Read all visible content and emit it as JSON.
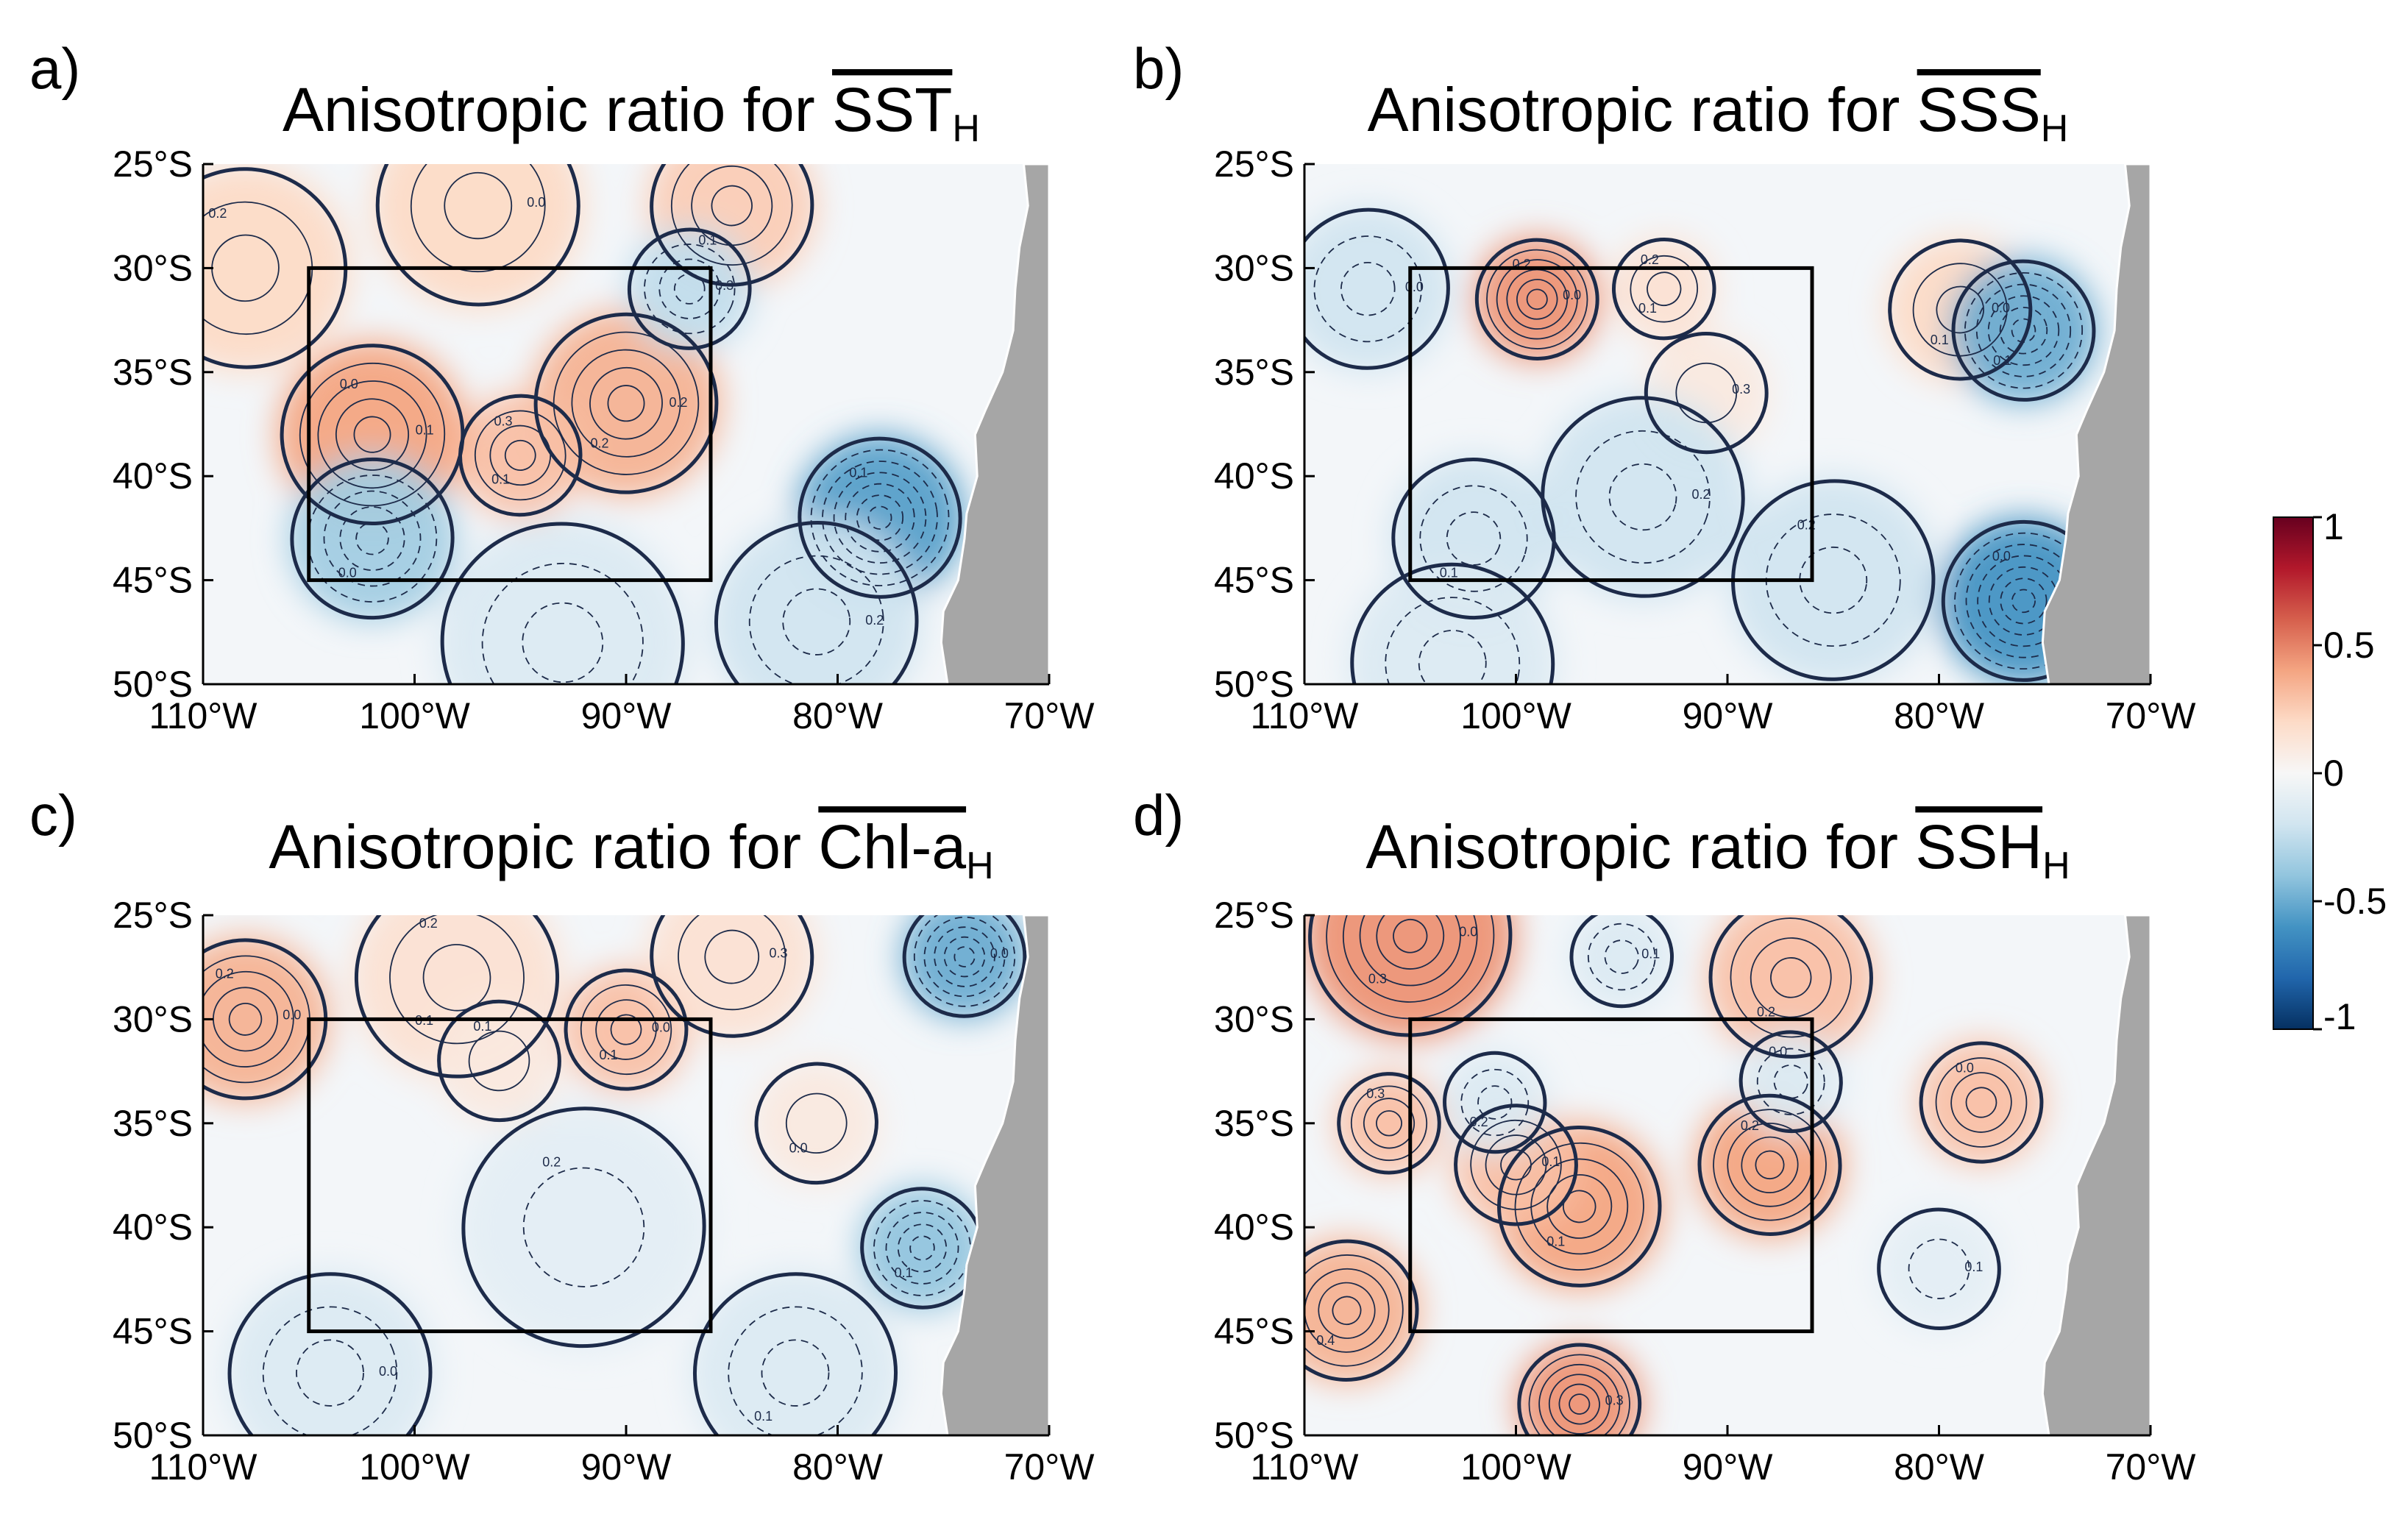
{
  "figure": {
    "colorbar": {
      "ticks": [
        {
          "value": 1,
          "label": "1"
        },
        {
          "value": 0.5,
          "label": "0.5"
        },
        {
          "value": 0,
          "label": "0"
        },
        {
          "value": -0.5,
          "label": "-0.5"
        },
        {
          "value": -1,
          "label": "-1"
        }
      ],
      "range": [
        -1,
        1
      ],
      "colormap": [
        "#053061",
        "#2166ac",
        "#4393c3",
        "#92c5de",
        "#d1e5f0",
        "#f7f7f7",
        "#fddbc7",
        "#f4a582",
        "#d6604d",
        "#b2182b",
        "#67001f"
      ]
    }
  },
  "colors": {
    "land": "#a6a6a6",
    "contour": "#1d2b4a",
    "box": "#000000",
    "pos_soft": "#f4c0a8",
    "pos_mid": "#ec9b7d",
    "pos_strong": "#dc6e56",
    "neg_soft": "#d3e6f2",
    "neg_mid": "#9fc9e2",
    "neg_strong": "#3f8dc4"
  },
  "chart_data": [
    {
      "type": "heatmap",
      "panel": "a)",
      "title": "Anisotropic ratio for SST",
      "title_main": "Anisotropic ratio for ",
      "title_var": "SST",
      "title_sub": "H",
      "xlim": [
        -110,
        -70
      ],
      "ylim": [
        -50,
        -25
      ],
      "x_ticks": [
        {
          "value": -110,
          "label": "110°W"
        },
        {
          "value": -100,
          "label": "100°W"
        },
        {
          "value": -90,
          "label": "90°W"
        },
        {
          "value": -80,
          "label": "80°W"
        },
        {
          "value": -70,
          "label": "70°W"
        }
      ],
      "y_ticks": [
        {
          "value": -25,
          "label": "25°S"
        },
        {
          "value": -30,
          "label": "30°S"
        },
        {
          "value": -35,
          "label": "35°S"
        },
        {
          "value": -40,
          "label": "40°S"
        },
        {
          "value": -45,
          "label": "45°S"
        },
        {
          "value": -50,
          "label": "50°S"
        }
      ],
      "box": {
        "lon": [
          -105,
          -86
        ],
        "lat": [
          -45,
          -30
        ]
      },
      "features": [
        {
          "lon": -102,
          "lat": -38,
          "value": 0.4,
          "r": 4.5
        },
        {
          "lon": -90,
          "lat": -36.5,
          "value": 0.35,
          "r": 4.5
        },
        {
          "lon": -95,
          "lat": -39,
          "value": 0.3,
          "r": 3
        },
        {
          "lon": -97,
          "lat": -27,
          "value": 0.2,
          "r": 5
        },
        {
          "lon": -85,
          "lat": -27,
          "value": 0.25,
          "r": 4
        },
        {
          "lon": -108,
          "lat": -30,
          "value": 0.2,
          "r": 5
        },
        {
          "lon": -87,
          "lat": -31,
          "value": -0.25,
          "r": 3
        },
        {
          "lon": -102,
          "lat": -43,
          "value": -0.35,
          "r": 4
        },
        {
          "lon": -78,
          "lat": -42,
          "value": -0.55,
          "r": 4
        },
        {
          "lon": -81,
          "lat": -47,
          "value": -0.2,
          "r": 5
        },
        {
          "lon": -93,
          "lat": -48,
          "value": -0.15,
          "r": 6
        }
      ],
      "contour_labels": [
        "0.1",
        "0.2",
        "0.3",
        "0.0",
        "0.1",
        "0.2",
        "0.3",
        "0.0",
        "0.1",
        "0.2",
        "0.1",
        "0.0",
        "0.2",
        "0.1"
      ]
    },
    {
      "type": "heatmap",
      "panel": "b)",
      "title": "Anisotropic ratio for SSS",
      "title_main": "Anisotropic ratio for ",
      "title_var": "SSS",
      "title_sub": "H",
      "xlim": [
        -110,
        -70
      ],
      "ylim": [
        -50,
        -25
      ],
      "x_ticks": [
        {
          "value": -110,
          "label": "110°W"
        },
        {
          "value": -100,
          "label": "100°W"
        },
        {
          "value": -90,
          "label": "90°W"
        },
        {
          "value": -80,
          "label": "80°W"
        },
        {
          "value": -70,
          "label": "70°W"
        }
      ],
      "y_ticks": [
        {
          "value": -25,
          "label": "25°S"
        },
        {
          "value": -30,
          "label": "30°S"
        },
        {
          "value": -35,
          "label": "35°S"
        },
        {
          "value": -40,
          "label": "40°S"
        },
        {
          "value": -45,
          "label": "45°S"
        },
        {
          "value": -50,
          "label": "50°S"
        }
      ],
      "box": {
        "lon": [
          -105,
          -86
        ],
        "lat": [
          -45,
          -30
        ]
      },
      "features": [
        {
          "lon": -99,
          "lat": -31.5,
          "value": 0.45,
          "r": 3
        },
        {
          "lon": -79,
          "lat": -32,
          "value": 0.2,
          "r": 3.5
        },
        {
          "lon": -93,
          "lat": -31,
          "value": 0.15,
          "r": 2.5
        },
        {
          "lon": -91,
          "lat": -36,
          "value": 0.1,
          "r": 3
        },
        {
          "lon": -76,
          "lat": -33,
          "value": -0.5,
          "r": 3.5
        },
        {
          "lon": -76,
          "lat": -46,
          "value": -0.6,
          "r": 4
        },
        {
          "lon": -94,
          "lat": -41,
          "value": -0.2,
          "r": 5
        },
        {
          "lon": -102,
          "lat": -43,
          "value": -0.2,
          "r": 4
        },
        {
          "lon": -85,
          "lat": -45,
          "value": -0.2,
          "r": 5
        },
        {
          "lon": -107,
          "lat": -31,
          "value": -0.2,
          "r": 4
        },
        {
          "lon": -103,
          "lat": -49,
          "value": -0.15,
          "r": 5
        }
      ],
      "contour_labels": [
        "0.0",
        "0.1",
        "0.2",
        "0.3",
        "0.1",
        "0.0",
        "0.2",
        "0.1",
        "0.2",
        "0.0",
        "0.1",
        "0.2",
        "0.0",
        "0.1"
      ]
    },
    {
      "type": "heatmap",
      "panel": "c)",
      "title": "Anisotropic ratio for Chl-a",
      "title_main": "Anisotropic ratio for ",
      "title_var": "Chl-a",
      "title_sub": "H",
      "xlim": [
        -110,
        -70
      ],
      "ylim": [
        -50,
        -25
      ],
      "x_ticks": [
        {
          "value": -110,
          "label": "110°W"
        },
        {
          "value": -100,
          "label": "100°W"
        },
        {
          "value": -90,
          "label": "90°W"
        },
        {
          "value": -80,
          "label": "80°W"
        },
        {
          "value": -70,
          "label": "70°W"
        }
      ],
      "y_ticks": [
        {
          "value": -25,
          "label": "25°S"
        },
        {
          "value": -30,
          "label": "30°S"
        },
        {
          "value": -35,
          "label": "35°S"
        },
        {
          "value": -40,
          "label": "40°S"
        },
        {
          "value": -45,
          "label": "45°S"
        },
        {
          "value": -50,
          "label": "50°S"
        }
      ],
      "box": {
        "lon": [
          -105,
          -86
        ],
        "lat": [
          -45,
          -30
        ]
      },
      "features": [
        {
          "lon": -108,
          "lat": -30,
          "value": 0.35,
          "r": 4
        },
        {
          "lon": -90,
          "lat": -30.5,
          "value": 0.3,
          "r": 3
        },
        {
          "lon": -98,
          "lat": -28,
          "value": 0.15,
          "r": 5
        },
        {
          "lon": -85,
          "lat": -27,
          "value": 0.15,
          "r": 4
        },
        {
          "lon": -81,
          "lat": -35,
          "value": 0.1,
          "r": 3
        },
        {
          "lon": -96,
          "lat": -32,
          "value": 0.1,
          "r": 3
        },
        {
          "lon": -74,
          "lat": -27,
          "value": -0.5,
          "r": 3
        },
        {
          "lon": -76,
          "lat": -41,
          "value": -0.4,
          "r": 3
        },
        {
          "lon": -92,
          "lat": -40,
          "value": -0.1,
          "r": 6
        },
        {
          "lon": -104,
          "lat": -47,
          "value": -0.15,
          "r": 5
        },
        {
          "lon": -82,
          "lat": -47,
          "value": -0.15,
          "r": 5
        }
      ],
      "contour_labels": [
        "0.0",
        "0.1",
        "0.2",
        "0.3",
        "0.0",
        "0.1",
        "0.0",
        "0.1",
        "0.2",
        "0.0",
        "0.1",
        "0.2",
        "0.0",
        "0.1"
      ]
    },
    {
      "type": "heatmap",
      "panel": "d)",
      "title": "Anisotropic ratio for SSH",
      "title_main": "Anisotropic ratio for ",
      "title_var": "SSH",
      "title_sub": "H",
      "xlim": [
        -110,
        -70
      ],
      "ylim": [
        -50,
        -25
      ],
      "x_ticks": [
        {
          "value": -110,
          "label": "110°W"
        },
        {
          "value": -100,
          "label": "100°W"
        },
        {
          "value": -90,
          "label": "90°W"
        },
        {
          "value": -80,
          "label": "80°W"
        },
        {
          "value": -70,
          "label": "70°W"
        }
      ],
      "y_ticks": [
        {
          "value": -25,
          "label": "25°S"
        },
        {
          "value": -30,
          "label": "30°S"
        },
        {
          "value": -35,
          "label": "35°S"
        },
        {
          "value": -40,
          "label": "40°S"
        },
        {
          "value": -45,
          "label": "45°S"
        },
        {
          "value": -50,
          "label": "50°S"
        }
      ],
      "box": {
        "lon": [
          -105,
          -86
        ],
        "lat": [
          -45,
          -30
        ]
      },
      "features": [
        {
          "lon": -105,
          "lat": -26,
          "value": 0.45,
          "r": 5
        },
        {
          "lon": -97,
          "lat": -39,
          "value": 0.4,
          "r": 4
        },
        {
          "lon": -88,
          "lat": -37,
          "value": 0.4,
          "r": 3.5
        },
        {
          "lon": -97,
          "lat": -48.5,
          "value": 0.45,
          "r": 3
        },
        {
          "lon": -108,
          "lat": -44,
          "value": 0.35,
          "r": 3.5
        },
        {
          "lon": -78,
          "lat": -34,
          "value": 0.3,
          "r": 3
        },
        {
          "lon": -100,
          "lat": -37,
          "value": 0.3,
          "r": 3
        },
        {
          "lon": -87,
          "lat": -28,
          "value": 0.3,
          "r": 4
        },
        {
          "lon": -106,
          "lat": -35,
          "value": 0.3,
          "r": 2.5
        },
        {
          "lon": -95,
          "lat": -27,
          "value": -0.15,
          "r": 2.5
        },
        {
          "lon": -101,
          "lat": -34,
          "value": -0.15,
          "r": 2.5
        },
        {
          "lon": -87,
          "lat": -33,
          "value": -0.15,
          "r": 2.5
        },
        {
          "lon": -80,
          "lat": -42,
          "value": -0.1,
          "r": 3
        }
      ],
      "contour_labels": [
        "0.0",
        "0.1",
        "0.2",
        "0.3",
        "0.4",
        "0.0",
        "0.1",
        "0.2",
        "0.3",
        "0.1",
        "0.2",
        "0.0",
        "0.1",
        "0.3"
      ]
    }
  ]
}
